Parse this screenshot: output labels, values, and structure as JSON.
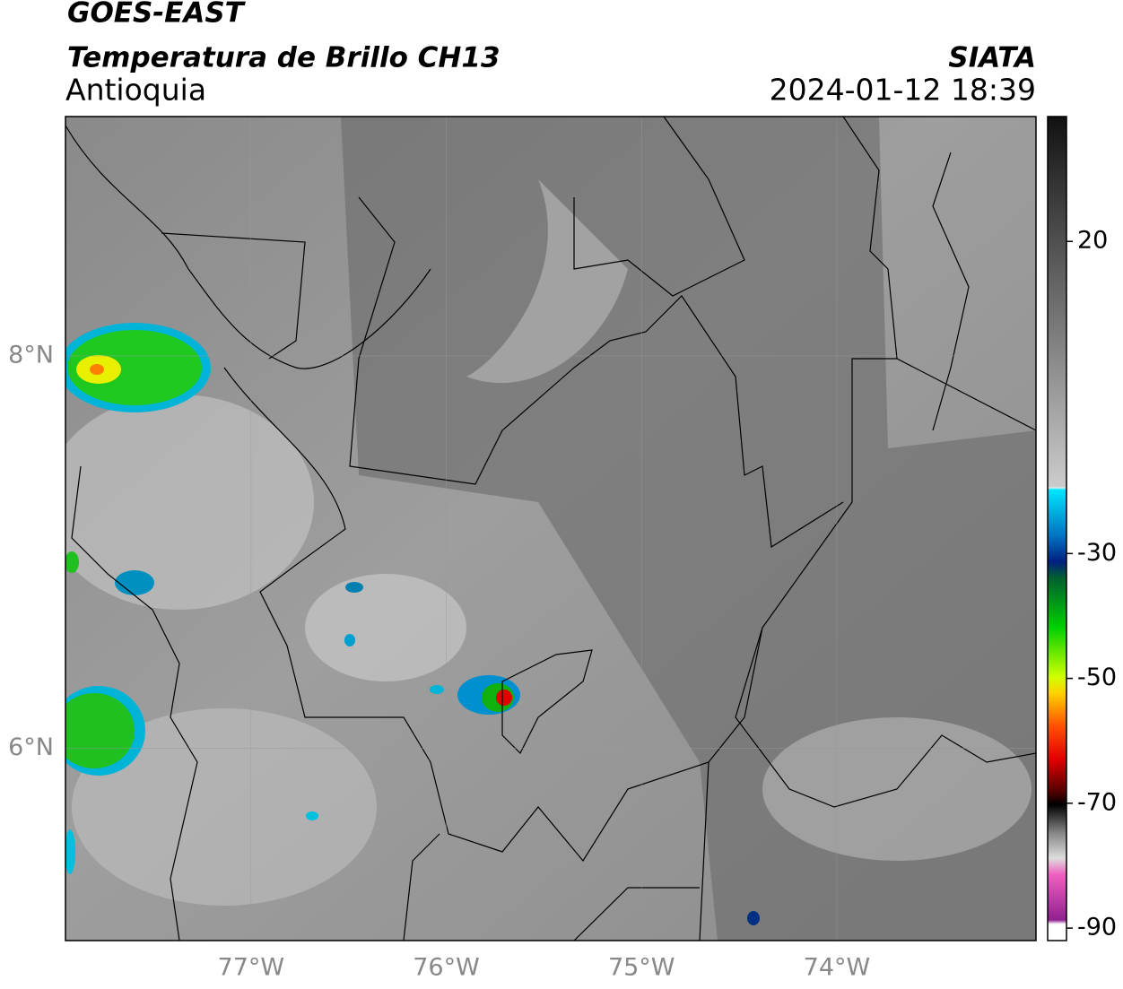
{
  "header": {
    "title": "GOES-EAST",
    "subtitle": "Temperatura de Brillo CH13",
    "region": "Antioquia",
    "source": "SIATA",
    "datetime": "2024-01-12 18:39"
  },
  "map": {
    "lonlim": [
      -77.95,
      -72.98
    ],
    "latlim": [
      5.02,
      9.22
    ],
    "lon_ticks": [
      {
        "value": -77,
        "label": "77°W"
      },
      {
        "value": -76,
        "label": "76°W"
      },
      {
        "value": -75,
        "label": "75°W"
      },
      {
        "value": -74,
        "label": "74°W"
      }
    ],
    "lat_ticks": [
      {
        "value": 8,
        "label": "8°N"
      },
      {
        "value": 6,
        "label": "6°N"
      }
    ]
  },
  "colorbar": {
    "lim": [
      40,
      -92
    ],
    "ticks": [
      20,
      -30,
      -50,
      -70,
      -90
    ]
  }
}
